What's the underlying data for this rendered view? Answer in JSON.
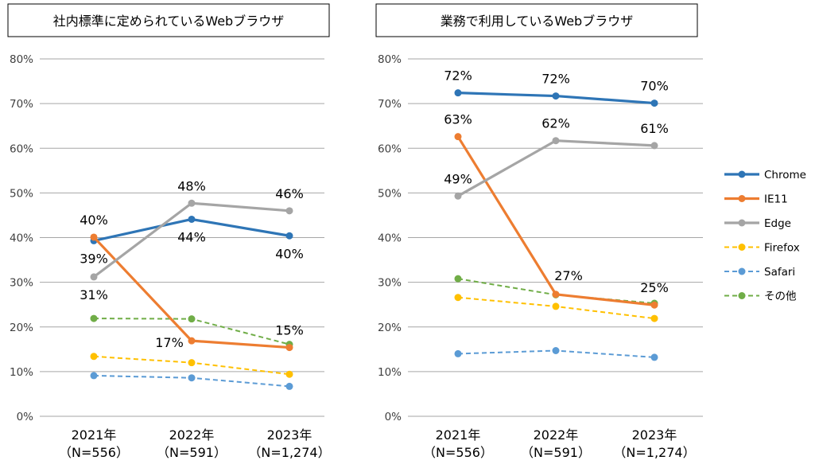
{
  "chart_data": [
    {
      "type": "line",
      "title": "社内標準に定められているWebブラウザ",
      "categories": [
        "2021年",
        "2022年",
        "2023年"
      ],
      "category_sublabels": [
        "（N=556）",
        "（N=591）",
        "（N=1,274）"
      ],
      "ylim": [
        0,
        80
      ],
      "yticks": [
        "0%",
        "10%",
        "20%",
        "30%",
        "40%",
        "50%",
        "60%",
        "70%",
        "80%"
      ],
      "grid": true,
      "series": [
        {
          "name": "Chrome",
          "values": [
            39.3,
            44.1,
            40.4
          ],
          "color": "#2e75b6",
          "dashed": false
        },
        {
          "name": "IE11",
          "values": [
            40.1,
            16.9,
            15.4
          ],
          "color": "#ed7d31",
          "dashed": false
        },
        {
          "name": "Edge",
          "values": [
            31.2,
            47.7,
            46.0
          ],
          "color": "#a5a5a5",
          "dashed": false
        },
        {
          "name": "Firefox",
          "values": [
            13.4,
            12.0,
            9.4
          ],
          "color": "#ffc000",
          "dashed": true
        },
        {
          "name": "Safari",
          "values": [
            9.1,
            8.6,
            6.7
          ],
          "color": "#5b9bd5",
          "dashed": true
        },
        {
          "name": "その他",
          "values": [
            21.9,
            21.8,
            16.1
          ],
          "color": "#70ad47",
          "dashed": true
        }
      ],
      "annotations": [
        {
          "text": "40%",
          "series": "IE11",
          "index": 0,
          "pos": "above"
        },
        {
          "text": "39%",
          "series": "Chrome",
          "index": 0,
          "pos": "below"
        },
        {
          "text": "31%",
          "series": "Edge",
          "index": 0,
          "pos": "below"
        },
        {
          "text": "48%",
          "series": "Edge",
          "index": 1,
          "pos": "above"
        },
        {
          "text": "44%",
          "series": "Chrome",
          "index": 1,
          "pos": "below"
        },
        {
          "text": "17%",
          "series": "IE11",
          "index": 1,
          "pos": "left"
        },
        {
          "text": "46%",
          "series": "Edge",
          "index": 2,
          "pos": "above"
        },
        {
          "text": "40%",
          "series": "Chrome",
          "index": 2,
          "pos": "below"
        },
        {
          "text": "15%",
          "series": "IE11",
          "index": 2,
          "pos": "above"
        }
      ]
    },
    {
      "type": "line",
      "title": "業務で利用しているWebブラウザ",
      "categories": [
        "2021年",
        "2022年",
        "2023年"
      ],
      "category_sublabels": [
        "（N=556）",
        "（N=591）",
        "（N=1,274）"
      ],
      "ylim": [
        0,
        80
      ],
      "yticks": [
        "0%",
        "10%",
        "20%",
        "30%",
        "40%",
        "50%",
        "60%",
        "70%",
        "80%"
      ],
      "grid": true,
      "series": [
        {
          "name": "Chrome",
          "values": [
            72.4,
            71.7,
            70.1
          ],
          "color": "#2e75b6",
          "dashed": false
        },
        {
          "name": "IE11",
          "values": [
            62.6,
            27.3,
            24.9
          ],
          "color": "#ed7d31",
          "dashed": false
        },
        {
          "name": "Edge",
          "values": [
            49.3,
            61.7,
            60.6
          ],
          "color": "#a5a5a5",
          "dashed": false
        },
        {
          "name": "Firefox",
          "values": [
            26.6,
            24.6,
            21.9
          ],
          "color": "#ffc000",
          "dashed": true
        },
        {
          "name": "Safari",
          "values": [
            14.0,
            14.7,
            13.2
          ],
          "color": "#5b9bd5",
          "dashed": true
        },
        {
          "name": "その他",
          "values": [
            30.8,
            27.2,
            25.3
          ],
          "color": "#70ad47",
          "dashed": true
        }
      ],
      "annotations": [
        {
          "text": "72%",
          "series": "Chrome",
          "index": 0,
          "pos": "above"
        },
        {
          "text": "63%",
          "series": "IE11",
          "index": 0,
          "pos": "above"
        },
        {
          "text": "49%",
          "series": "Edge",
          "index": 0,
          "pos": "above"
        },
        {
          "text": "72%",
          "series": "Chrome",
          "index": 1,
          "pos": "above"
        },
        {
          "text": "62%",
          "series": "Edge",
          "index": 1,
          "pos": "above"
        },
        {
          "text": "27%",
          "series": "IE11",
          "index": 1,
          "pos": "above-right"
        },
        {
          "text": "70%",
          "series": "Chrome",
          "index": 2,
          "pos": "above"
        },
        {
          "text": "61%",
          "series": "Edge",
          "index": 2,
          "pos": "above"
        },
        {
          "text": "25%",
          "series": "IE11",
          "index": 2,
          "pos": "above"
        }
      ]
    }
  ],
  "legend": {
    "placement": "right",
    "items": [
      {
        "name": "Chrome",
        "color": "#2e75b6",
        "dashed": false
      },
      {
        "name": "IE11",
        "color": "#ed7d31",
        "dashed": false
      },
      {
        "name": "Edge",
        "color": "#a5a5a5",
        "dashed": false
      },
      {
        "name": "Firefox",
        "color": "#ffc000",
        "dashed": true
      },
      {
        "name": "Safari",
        "color": "#5b9bd5",
        "dashed": true
      },
      {
        "name": "その他",
        "color": "#70ad47",
        "dashed": true
      }
    ]
  }
}
